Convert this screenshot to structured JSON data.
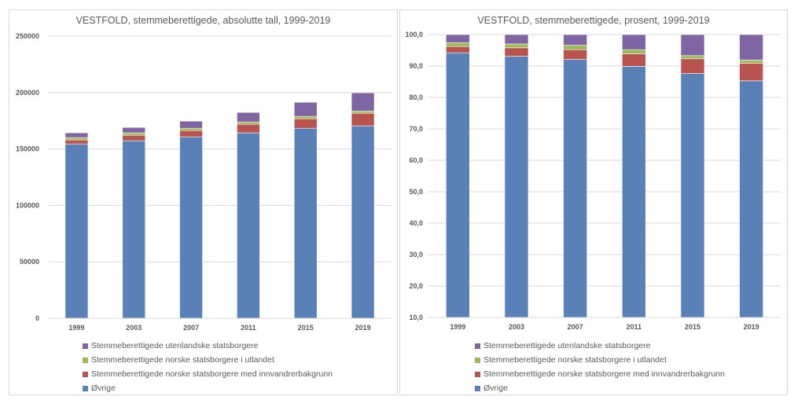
{
  "chart_data": [
    {
      "type": "bar",
      "stacked": true,
      "title": "VESTFOLD, stemmeberettigede, absolutte tall, 1999-2019",
      "xlabel": "",
      "ylabel": "",
      "ylim": [
        0,
        250000
      ],
      "yticks": [
        "0",
        "50000",
        "100000",
        "150000",
        "200000",
        "250000"
      ],
      "ytick_values": [
        0,
        50000,
        100000,
        150000,
        200000,
        250000
      ],
      "grid": true,
      "legend_position": "bottom",
      "categories": [
        "1999",
        "2003",
        "2007",
        "2011",
        "2015",
        "2019"
      ],
      "series": [
        {
          "name": "Øvrige",
          "color": "#5a80b8",
          "values": [
            154500,
            157300,
            160800,
            164300,
            168400,
            170500
          ]
        },
        {
          "name": "Stemmeberettigede norske statsborgere med innvandrerbakgrunn",
          "color": "#b9534f",
          "values": [
            3500,
            4900,
            5500,
            7600,
            8400,
            11200
          ]
        },
        {
          "name": "Stemmeberettigede norske statsborgere i utlandet",
          "color": "#9bbb59",
          "values": [
            2100,
            2100,
            2100,
            2100,
            2100,
            2000
          ]
        },
        {
          "name": "Stemmeberettigede utenlandske statsborgere",
          "color": "#7f65a1",
          "values": [
            4200,
            4800,
            6300,
            8400,
            12500,
            16100
          ]
        }
      ]
    },
    {
      "type": "bar",
      "stacked": true,
      "title": "VESTFOLD, stemmeberettigede, prosent, 1999-2019",
      "xlabel": "",
      "ylabel": "",
      "ylim": [
        10,
        100
      ],
      "yticks": [
        "10,0",
        "20,0",
        "30,0",
        "40,0",
        "50,0",
        "60,0",
        "70,0",
        "80,0",
        "90,0",
        "100,0"
      ],
      "ytick_values": [
        10,
        20,
        30,
        40,
        50,
        60,
        70,
        80,
        90,
        100
      ],
      "grid": true,
      "legend_position": "bottom",
      "categories": [
        "1999",
        "2003",
        "2007",
        "2011",
        "2015",
        "2019"
      ],
      "series": [
        {
          "name": "Øvrige",
          "color": "#5a80b8",
          "values": [
            94.2,
            93.1,
            92.1,
            89.9,
            87.6,
            85.3
          ]
        },
        {
          "name": "Stemmeberettigede norske statsborgere med innvandrerbakgrunn",
          "color": "#b9534f",
          "values": [
            2.0,
            2.7,
            3.1,
            4.0,
            4.7,
            5.6
          ]
        },
        {
          "name": "Stemmeberettigede norske statsborgere i utlandet",
          "color": "#9bbb59",
          "values": [
            1.2,
            1.2,
            1.4,
            1.3,
            1.0,
            1.0
          ]
        },
        {
          "name": "Stemmeberettigede utenlandske statsborgere",
          "color": "#7f65a1",
          "values": [
            2.6,
            3.0,
            3.4,
            4.8,
            6.7,
            8.1
          ]
        }
      ]
    }
  ],
  "legend": [
    {
      "label": "Stemmeberettigede utenlandske statsborgere",
      "color": "#7f65a1"
    },
    {
      "label": "Stemmeberettigede norske statsborgere i utlandet",
      "color": "#9bbb59"
    },
    {
      "label": "Stemmeberettigede norske statsborgere med innvandrerbakgrunn",
      "color": "#b9534f"
    },
    {
      "label": "Øvrige",
      "color": "#5a80b8"
    }
  ]
}
